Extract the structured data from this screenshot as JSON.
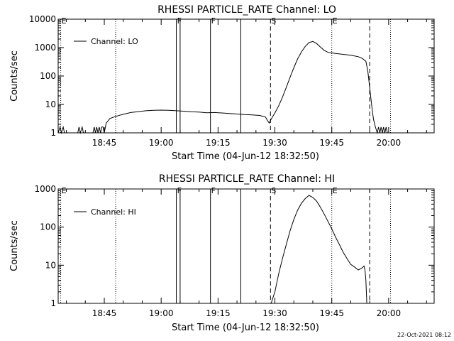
{
  "footer": "22-Oct-2021 08:12",
  "chart_data": [
    {
      "type": "line",
      "title": "RHESSI PARTICLE_RATE Channel: LO",
      "xlabel": "Start Time (04-Jun-12 18:32:50)",
      "ylabel": "Counts/sec",
      "yscale": "log",
      "ylim": [
        1,
        10000
      ],
      "yticks": [
        {
          "v": 1,
          "label": "1"
        },
        {
          "v": 10,
          "label": "10"
        },
        {
          "v": 100,
          "label": "100"
        },
        {
          "v": 1000,
          "label": "1000"
        },
        {
          "v": 10000,
          "label": "10000"
        }
      ],
      "xlim": [
        "18:32:50",
        "20:12:00"
      ],
      "xticks": [
        "18:45",
        "19:00",
        "19:15",
        "19:30",
        "19:45",
        "20:00"
      ],
      "legend": {
        "placement": "top-left",
        "entries": [
          "Channel: LO"
        ]
      },
      "markers": [
        {
          "time": "18:33:30",
          "style": "dotted",
          "label": "E"
        },
        {
          "time": "18:48:00",
          "style": "dotted",
          "label": ""
        },
        {
          "time": "19:04:00",
          "style": "solid",
          "label": "F"
        },
        {
          "time": "19:05:00",
          "style": "solid",
          "label": ""
        },
        {
          "time": "19:13:00",
          "style": "solid",
          "label": "F"
        },
        {
          "time": "19:21:00",
          "style": "solid",
          "label": ""
        },
        {
          "time": "19:28:50",
          "style": "dashed",
          "label": "S"
        },
        {
          "time": "19:45:00",
          "style": "dotted",
          "label": "E"
        },
        {
          "time": "19:55:00",
          "style": "dashed",
          "label": ""
        },
        {
          "time": "20:00:30",
          "style": "dotted",
          "label": ""
        }
      ],
      "series": [
        {
          "name": "Channel: LO",
          "points": [
            [
              "18:32:50",
              1
            ],
            [
              "18:33:20",
              1.6
            ],
            [
              "18:33:40",
              1
            ],
            [
              "18:34:10",
              1.6
            ],
            [
              "18:34:30",
              1
            ],
            [
              "18:38:00",
              1
            ],
            [
              "18:38:20",
              1.6
            ],
            [
              "18:38:40",
              1
            ],
            [
              "18:39:10",
              1.6
            ],
            [
              "18:39:30",
              1
            ],
            [
              "18:42:00",
              1
            ],
            [
              "18:42:20",
              1.6
            ],
            [
              "18:42:40",
              1
            ],
            [
              "18:43:00",
              1.6
            ],
            [
              "18:43:20",
              1
            ],
            [
              "18:43:40",
              1.6
            ],
            [
              "18:44:00",
              1
            ],
            [
              "18:44:20",
              1.6
            ],
            [
              "18:44:40",
              1.6
            ],
            [
              "18:45:00",
              1
            ],
            [
              "18:45:30",
              2.2
            ],
            [
              "18:46:30",
              3.2
            ],
            [
              "18:48:00",
              3.8
            ],
            [
              "18:50:00",
              4.5
            ],
            [
              "18:52:00",
              5.2
            ],
            [
              "18:54:00",
              5.6
            ],
            [
              "18:56:00",
              6.0
            ],
            [
              "18:58:00",
              6.2
            ],
            [
              "19:00:00",
              6.3
            ],
            [
              "19:02:00",
              6.2
            ],
            [
              "19:04:00",
              6.0
            ],
            [
              "19:06:00",
              5.8
            ],
            [
              "19:08:00",
              5.5
            ],
            [
              "19:10:00",
              5.4
            ],
            [
              "19:12:00",
              5.1
            ],
            [
              "19:14:00",
              5.2
            ],
            [
              "19:16:00",
              5.0
            ],
            [
              "19:18:00",
              4.8
            ],
            [
              "19:20:00",
              4.6
            ],
            [
              "19:22:00",
              4.4
            ],
            [
              "19:24:00",
              4.3
            ],
            [
              "19:26:00",
              4.1
            ],
            [
              "19:27:30",
              3.6
            ],
            [
              "19:28:00",
              2.8
            ],
            [
              "19:28:30",
              2.2
            ],
            [
              "19:29:00",
              3.0
            ],
            [
              "19:30:00",
              5
            ],
            [
              "19:31:00",
              9
            ],
            [
              "19:32:00",
              18
            ],
            [
              "19:33:00",
              40
            ],
            [
              "19:34:00",
              90
            ],
            [
              "19:35:00",
              200
            ],
            [
              "19:36:00",
              400
            ],
            [
              "19:37:00",
              700
            ],
            [
              "19:38:00",
              1100
            ],
            [
              "19:39:00",
              1500
            ],
            [
              "19:40:00",
              1650
            ],
            [
              "19:41:00",
              1400
            ],
            [
              "19:42:00",
              1050
            ],
            [
              "19:43:00",
              800
            ],
            [
              "19:44:00",
              680
            ],
            [
              "19:46:00",
              620
            ],
            [
              "19:48:00",
              580
            ],
            [
              "19:50:00",
              540
            ],
            [
              "19:52:00",
              480
            ],
            [
              "19:53:00",
              420
            ],
            [
              "19:54:00",
              330
            ],
            [
              "19:54:30",
              150
            ],
            [
              "19:55:00",
              40
            ],
            [
              "19:55:30",
              10
            ],
            [
              "19:56:00",
              3
            ],
            [
              "19:56:30",
              1.6
            ],
            [
              "19:57:00",
              1
            ],
            [
              "19:57:20",
              1.6
            ],
            [
              "19:57:40",
              1
            ],
            [
              "19:58:00",
              1.6
            ],
            [
              "19:58:20",
              1
            ],
            [
              "19:58:40",
              1.6
            ],
            [
              "19:59:00",
              1
            ],
            [
              "19:59:20",
              1.6
            ],
            [
              "19:59:40",
              1
            ]
          ]
        }
      ]
    },
    {
      "type": "line",
      "title": "RHESSI PARTICLE_RATE Channel: HI",
      "xlabel": "Start Time (04-Jun-12 18:32:50)",
      "ylabel": "Counts/sec",
      "yscale": "log",
      "ylim": [
        1,
        1000
      ],
      "yticks": [
        {
          "v": 1,
          "label": "1"
        },
        {
          "v": 10,
          "label": "10"
        },
        {
          "v": 100,
          "label": "100"
        },
        {
          "v": 1000,
          "label": "1000"
        }
      ],
      "xlim": [
        "18:32:50",
        "20:12:00"
      ],
      "xticks": [
        "18:45",
        "19:00",
        "19:15",
        "19:30",
        "19:45",
        "20:00"
      ],
      "legend": {
        "placement": "top-left",
        "entries": [
          "Channel: HI"
        ]
      },
      "markers": [
        {
          "time": "18:33:30",
          "style": "dotted",
          "label": "E"
        },
        {
          "time": "18:48:00",
          "style": "dotted",
          "label": ""
        },
        {
          "time": "19:04:00",
          "style": "solid",
          "label": "F"
        },
        {
          "time": "19:05:00",
          "style": "solid",
          "label": ""
        },
        {
          "time": "19:13:00",
          "style": "solid",
          "label": "F"
        },
        {
          "time": "19:21:00",
          "style": "solid",
          "label": ""
        },
        {
          "time": "19:28:50",
          "style": "dashed",
          "label": "S"
        },
        {
          "time": "19:45:00",
          "style": "dotted",
          "label": "E"
        },
        {
          "time": "19:55:00",
          "style": "dashed",
          "label": ""
        },
        {
          "time": "20:00:30",
          "style": "dotted",
          "label": ""
        }
      ],
      "series": [
        {
          "name": "Channel: HI",
          "points": [
            [
              "19:29:00",
              1
            ],
            [
              "19:30:00",
              2
            ],
            [
              "19:31:00",
              6
            ],
            [
              "19:32:00",
              15
            ],
            [
              "19:33:00",
              35
            ],
            [
              "19:34:00",
              80
            ],
            [
              "19:35:00",
              160
            ],
            [
              "19:36:00",
              280
            ],
            [
              "19:37:00",
              420
            ],
            [
              "19:38:00",
              560
            ],
            [
              "19:39:00",
              680
            ],
            [
              "19:40:00",
              600
            ],
            [
              "19:41:00",
              480
            ],
            [
              "19:42:00",
              330
            ],
            [
              "19:43:00",
              220
            ],
            [
              "19:44:00",
              140
            ],
            [
              "19:45:00",
              90
            ],
            [
              "19:46:00",
              55
            ],
            [
              "19:47:00",
              35
            ],
            [
              "19:48:00",
              22
            ],
            [
              "19:49:00",
              15
            ],
            [
              "19:50:00",
              10.5
            ],
            [
              "19:51:00",
              9
            ],
            [
              "19:52:00",
              7.5
            ],
            [
              "19:53:00",
              8.5
            ],
            [
              "19:53:30",
              9.5
            ],
            [
              "19:53:45",
              7.5
            ],
            [
              "19:54:00",
              4
            ],
            [
              "19:54:15",
              1
            ]
          ]
        }
      ]
    }
  ]
}
